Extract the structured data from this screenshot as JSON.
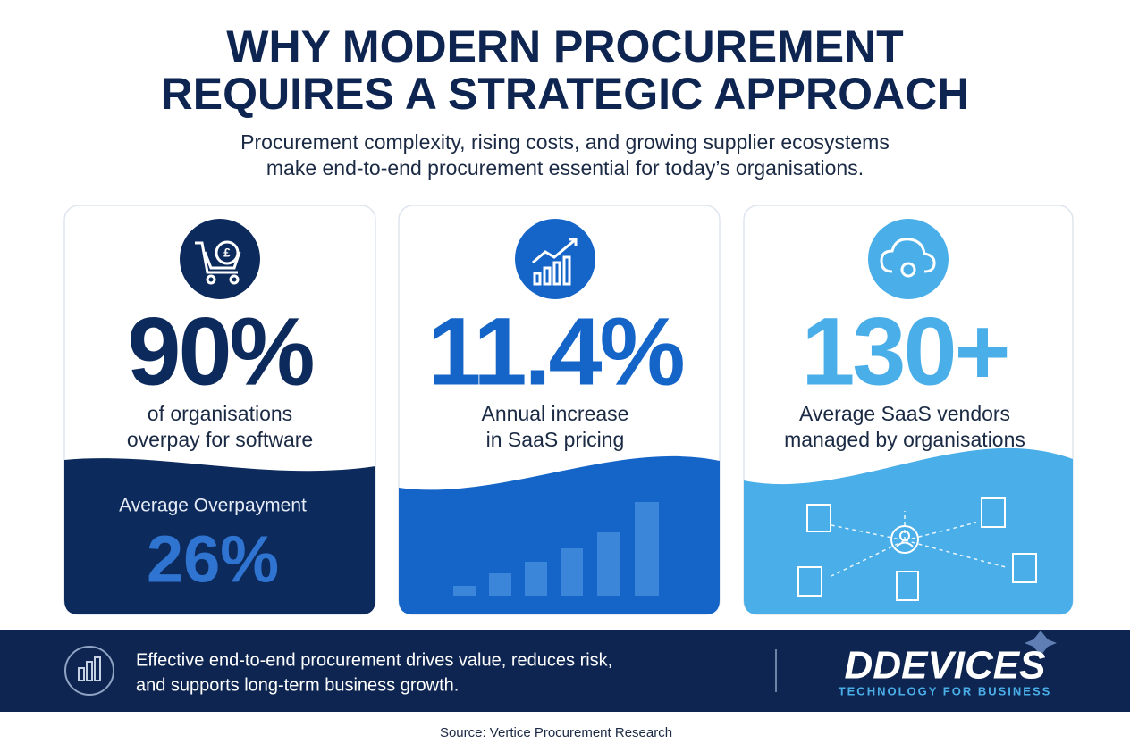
{
  "header": {
    "title": [
      "WHY MODERN PROCUREMENT",
      "REQUIRES A STRATEGIC APPROACH"
    ],
    "subtitle": [
      "Procurement complexity, rising costs, and growing supplier ecosystems",
      "make end-to-end procurement essential for today’s organisations."
    ]
  },
  "cards": [
    {
      "stat": "90%",
      "label": [
        "of organisations",
        "overpay for software"
      ],
      "detail_label": "Average Overpayment",
      "detail_value": "26%"
    },
    {
      "stat": "11.4%",
      "label": [
        "Annual increase",
        "in SaaS pricing"
      ]
    },
    {
      "stat": "130+",
      "label": [
        "Average SaaS vendors",
        "managed by organisations"
      ]
    }
  ],
  "footer": {
    "text": [
      "Effective end-to-end procurement drives value, reduces risk,",
      "and supports long-term business growth."
    ],
    "logo": "DDEVICES",
    "tagline": "TECHNOLOGY FOR BUSINESS"
  },
  "source": "Source: Vertice Procurement Research"
}
